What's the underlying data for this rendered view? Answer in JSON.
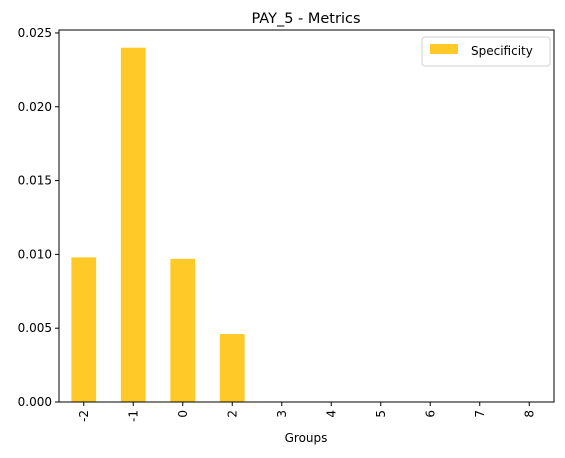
{
  "chart_data": {
    "type": "bar",
    "title": "PAY_5 - Metrics",
    "xlabel": "Groups",
    "ylabel": "",
    "categories": [
      "-2",
      "-1",
      "0",
      "2",
      "3",
      "4",
      "5",
      "6",
      "7",
      "8"
    ],
    "series": [
      {
        "name": "Specificity",
        "color": "#ffc928",
        "values": [
          0.0098,
          0.024,
          0.0097,
          0.0046,
          0,
          0,
          0,
          0,
          0,
          0
        ]
      }
    ],
    "yticks": [
      0.0,
      0.005,
      0.01,
      0.015,
      0.02,
      0.025
    ],
    "ytick_labels": [
      "0.000",
      "0.005",
      "0.010",
      "0.015",
      "0.020",
      "0.025"
    ],
    "ylim": [
      0,
      0.0252
    ],
    "grid": false,
    "legend_position": "top-right",
    "xtick_rotation": "vertical"
  }
}
